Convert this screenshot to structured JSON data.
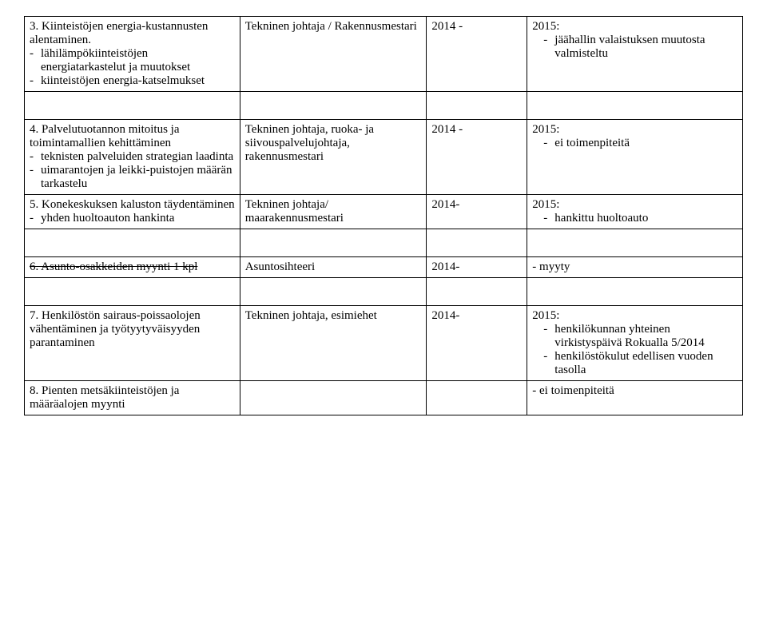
{
  "table": {
    "columns": [
      "col1",
      "col2",
      "col3",
      "col4"
    ],
    "rows": [
      {
        "c1_title": "3. Kiinteistöjen energia-kustannusten alentaminen.",
        "c1_items": [
          "lähilämpökiinteistöjen energiatarkastelut ja muutokset",
          "kiinteistöjen energia-katselmukset"
        ],
        "c2": "Tekninen johtaja / Rakennusmestari",
        "c3": "2014 -",
        "c4_title": "2015:",
        "c4_items": [
          "jäähallin valaistuksen muutosta valmisteltu"
        ]
      },
      {
        "c1_title": "4. Palvelutuotannon mitoitus ja toimintamallien kehittäminen",
        "c1_items": [
          "teknisten palveluiden strategian laadinta",
          "uimarantojen ja leikki-puistojen määrän tarkastelu"
        ],
        "c2": "Tekninen johtaja, ruoka- ja siivouspalvelujohtaja, rakennusmestari",
        "c3": "2014 -",
        "c4_title": "2015:",
        "c4_items": [
          "ei toimenpiteitä"
        ]
      },
      {
        "c1_title": "5. Konekeskuksen kaluston täydentäminen",
        "c1_items": [
          "yhden huoltoauton hankinta"
        ],
        "c2": "Tekninen johtaja/ maarakennusmestari",
        "c3": "2014-",
        "c4_title": "2015:",
        "c4_items": [
          "hankittu huoltoauto"
        ]
      },
      {
        "c1_strike": "6. Asunto-osakkeiden myynti 1 kpl",
        "c2": "Asuntosihteeri",
        "c3": "2014-",
        "c4_plain": "- myyty"
      },
      {
        "c1_title": "7. Henkilöstön sairaus-poissaolojen vähentäminen ja työtyytyväisyyden parantaminen",
        "c2": "Tekninen johtaja, esimiehet",
        "c3": "2014-",
        "c4_title": "2015:",
        "c4_items": [
          "henkilökunnan yhteinen virkistyspäivä Rokualla 5/2014",
          "henkilöstökulut edellisen vuoden tasolla"
        ]
      },
      {
        "c1_title": "8. Pienten metsäkiinteistöjen ja määräalojen myynti",
        "c4_plain": "- ei toimenpiteitä"
      }
    ]
  },
  "style": {
    "font_family": "Times New Roman",
    "font_size_pt": 12,
    "border_color": "#000000",
    "background_color": "#ffffff",
    "text_color": "#000000"
  }
}
